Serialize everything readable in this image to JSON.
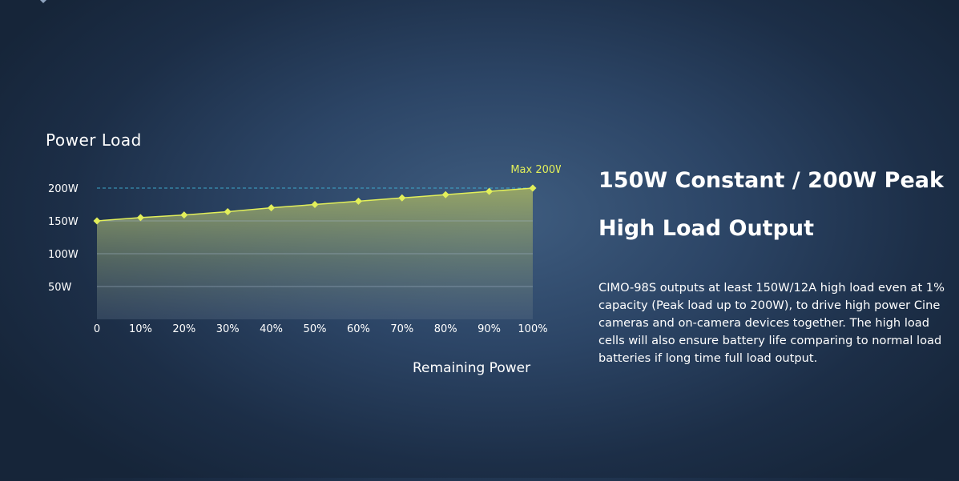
{
  "chart_data": {
    "type": "area",
    "title": "Power Load",
    "xlabel": "Remaining Power",
    "ylabel": "",
    "categories": [
      "0",
      "10%",
      "20%",
      "30%",
      "40%",
      "50%",
      "60%",
      "70%",
      "80%",
      "90%",
      "100%"
    ],
    "values": [
      150,
      155,
      159,
      164,
      170,
      175,
      180,
      185,
      190,
      195,
      200
    ],
    "y_ticks": [
      "50W",
      "100W",
      "150W",
      "200W"
    ],
    "y_tick_values": [
      50,
      100,
      150,
      200
    ],
    "ylim": [
      0,
      200
    ],
    "annotation": "Max 200W",
    "grid": true,
    "colors": {
      "line": "#e2ef5a",
      "marker": "#e2ef5a",
      "fill": "#9aa864",
      "grid": "#9fb0c4",
      "max_line": "#3fb3d6",
      "annotation": "#e2ef5a"
    }
  },
  "headline": {
    "line1": "150W Constant / 200W Peak",
    "line2": "High Load Output"
  },
  "description": "CIMO-98S outputs at least 150W/12A high load even at 1% capacity (Peak load up to 200W), to drive high power Cine cameras and on-camera devices together. The high load cells will also ensure battery life comparing to normal load batteries if long time full load output."
}
